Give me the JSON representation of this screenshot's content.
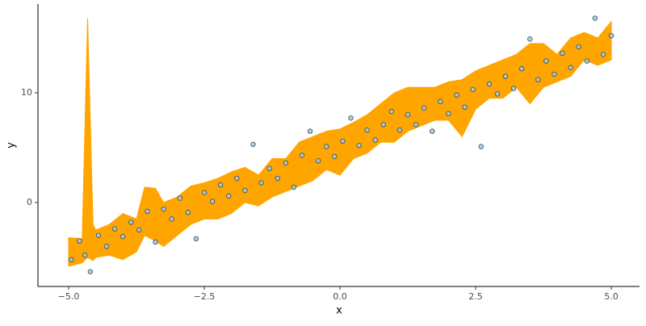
{
  "chart_data": {
    "type": "scatter",
    "x_label": "x",
    "y_label": "y",
    "x": [
      -4.95,
      -4.8,
      -4.7,
      -4.6,
      -4.45,
      -4.3,
      -4.15,
      -4.0,
      -3.85,
      -3.7,
      -3.55,
      -3.4,
      -3.25,
      -3.1,
      -2.95,
      -2.8,
      -2.65,
      -2.5,
      -2.35,
      -2.2,
      -2.05,
      -1.9,
      -1.75,
      -1.6,
      -1.45,
      -1.3,
      -1.15,
      -1.0,
      -0.85,
      -0.7,
      -0.55,
      -0.4,
      -0.25,
      -0.1,
      0.05,
      0.2,
      0.35,
      0.5,
      0.65,
      0.8,
      0.95,
      1.1,
      1.25,
      1.4,
      1.55,
      1.7,
      1.85,
      2.0,
      2.15,
      2.3,
      2.45,
      2.6,
      2.75,
      2.9,
      3.05,
      3.2,
      3.35,
      3.5,
      3.65,
      3.8,
      3.95,
      4.1,
      4.25,
      4.4,
      4.55,
      4.7,
      4.85,
      5.0
    ],
    "values": [
      -5.2,
      -3.5,
      -4.8,
      -6.3,
      -3.0,
      -4.0,
      -2.4,
      -3.1,
      -1.8,
      -2.5,
      -0.8,
      -3.6,
      -0.6,
      -1.5,
      0.4,
      -0.9,
      -3.3,
      0.9,
      0.1,
      1.6,
      0.6,
      2.2,
      1.1,
      5.3,
      1.8,
      3.1,
      2.2,
      3.6,
      1.4,
      4.3,
      6.5,
      3.8,
      5.1,
      4.2,
      5.6,
      7.7,
      5.2,
      6.6,
      5.7,
      7.1,
      8.3,
      6.6,
      8.0,
      7.1,
      8.6,
      6.5,
      9.2,
      8.1,
      9.8,
      8.7,
      10.3,
      5.1,
      10.8,
      9.9,
      11.5,
      10.4,
      12.2,
      14.9,
      11.2,
      12.9,
      11.7,
      13.6,
      12.3,
      14.2,
      12.9,
      16.8,
      13.5,
      15.2
    ],
    "point_fill": "#a6c8dc",
    "point_edge": "#2f4f5f",
    "ribbon": {
      "color": "#ffa500",
      "x": [
        -5.0,
        -4.75,
        -4.65,
        -4.55,
        -4.5,
        -4.25,
        -4.0,
        -3.75,
        -3.6,
        -3.4,
        -3.25,
        -3.0,
        -2.75,
        -2.5,
        -2.25,
        -2.0,
        -1.75,
        -1.5,
        -1.25,
        -1.0,
        -0.75,
        -0.5,
        -0.25,
        0.0,
        0.25,
        0.5,
        0.75,
        1.0,
        1.25,
        1.5,
        1.75,
        2.0,
        2.25,
        2.5,
        2.75,
        3.0,
        3.25,
        3.5,
        3.75,
        4.0,
        4.25,
        4.5,
        4.75,
        5.0
      ],
      "lower": [
        -5.8,
        -5.5,
        -5.0,
        -5.3,
        -5.0,
        -4.8,
        -5.2,
        -4.5,
        -3.0,
        -3.5,
        -4.0,
        -3.0,
        -2.0,
        -1.5,
        -1.5,
        -1.0,
        0.0,
        -0.3,
        0.5,
        1.0,
        1.5,
        2.0,
        3.0,
        2.5,
        4.0,
        4.5,
        5.5,
        5.5,
        6.5,
        7.0,
        7.5,
        7.5,
        6.0,
        8.5,
        9.5,
        9.5,
        10.5,
        9.0,
        10.5,
        11.0,
        11.5,
        13.0,
        12.5,
        13.0
      ],
      "upper": [
        -3.2,
        -3.3,
        16.8,
        -2.0,
        -2.5,
        -2.0,
        -1.0,
        -1.5,
        1.4,
        1.3,
        0.0,
        0.5,
        1.5,
        1.8,
        2.2,
        2.8,
        3.2,
        2.5,
        4.0,
        4.0,
        5.5,
        6.0,
        6.5,
        6.7,
        7.3,
        8.0,
        9.0,
        10.0,
        10.5,
        10.5,
        10.5,
        11.0,
        11.2,
        12.0,
        12.5,
        13.0,
        13.5,
        14.5,
        14.5,
        13.5,
        15.0,
        15.5,
        15.0,
        16.5
      ]
    },
    "xlim": [
      -5.565,
      5.52
    ],
    "ylim": [
      -7.65,
      18.09
    ],
    "xticks": [
      {
        "value": -5,
        "label": "−5.0"
      },
      {
        "value": -2.5,
        "label": "−2.5"
      },
      {
        "value": 0,
        "label": "0.0"
      },
      {
        "value": 2.5,
        "label": "2.5"
      },
      {
        "value": 5,
        "label": "5.0"
      }
    ],
    "yticks": [
      0,
      10
    ]
  }
}
